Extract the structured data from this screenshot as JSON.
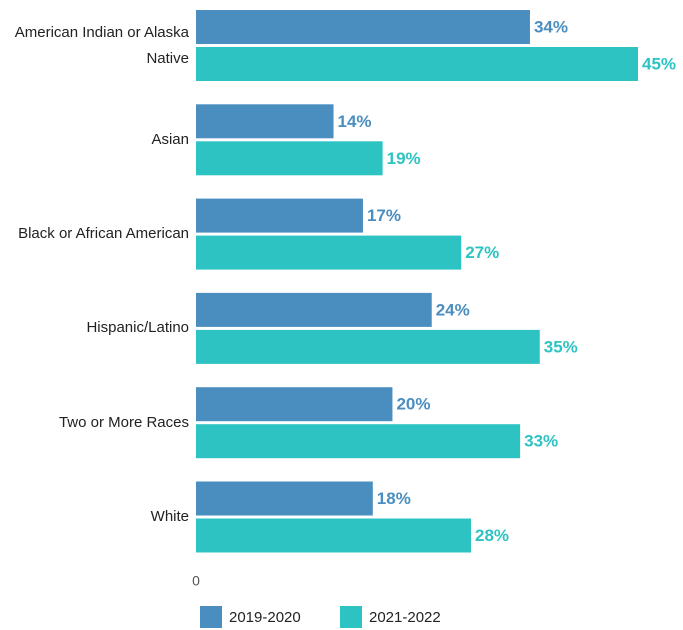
{
  "chart_data": {
    "type": "bar",
    "orientation": "horizontal",
    "categories": [
      "American Indian or Alaska Native",
      "Asian",
      "Black or African American",
      "Hispanic/Latino",
      "Two or More Races",
      "White"
    ],
    "series": [
      {
        "name": "2019-2020",
        "color": "#4a8ec0",
        "values": [
          34,
          14,
          17,
          24,
          20,
          18
        ],
        "value_labels": [
          "34%",
          "14%",
          "17%",
          "24%",
          "20%",
          "18%"
        ]
      },
      {
        "name": "2021-2022",
        "color": "#2ec3c3",
        "values": [
          45,
          19,
          27,
          35,
          33,
          28
        ],
        "value_labels": [
          "45%",
          "19%",
          "27%",
          "35%",
          "33%",
          "28%"
        ]
      }
    ],
    "xlim": [
      0,
      45
    ],
    "xticks": [
      0
    ],
    "legend": "bottom"
  }
}
